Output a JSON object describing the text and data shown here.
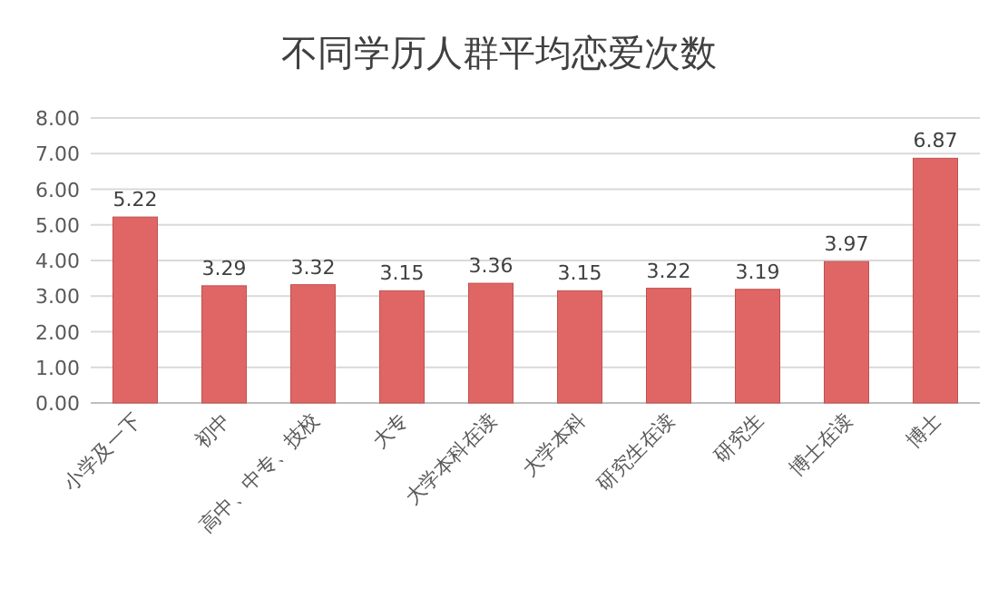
{
  "chart_data": {
    "type": "bar",
    "title": "不同学历人群平均恋爱次数",
    "categories": [
      "小学及一下",
      "初中",
      "高中、中专、技校",
      "大专",
      "大学本科在读",
      "大学本科",
      "研究生在读",
      "研究生",
      "博士在读",
      "博士"
    ],
    "values": [
      5.22,
      3.29,
      3.32,
      3.15,
      3.36,
      3.15,
      3.22,
      3.19,
      3.97,
      6.87
    ],
    "color": "#e06666",
    "ylim": [
      0,
      8
    ],
    "yticks": [
      {
        "value": 0,
        "label": "0.00"
      },
      {
        "value": 1,
        "label": "1.00"
      },
      {
        "value": 2,
        "label": "2.00"
      },
      {
        "value": 3,
        "label": "3.00"
      },
      {
        "value": 4,
        "label": "4.00"
      },
      {
        "value": 5,
        "label": "5.00"
      },
      {
        "value": 6,
        "label": "6.00"
      },
      {
        "value": 7,
        "label": "7.00"
      },
      {
        "value": 8,
        "label": "8.00"
      }
    ],
    "grid": "y",
    "data_labels": true
  }
}
